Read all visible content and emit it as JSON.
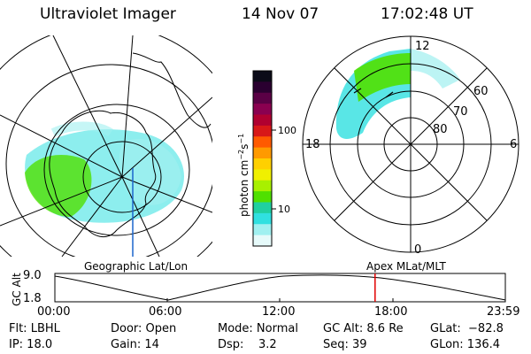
{
  "header": {
    "instrument": "Ultraviolet Imager",
    "date": "14 Nov 07",
    "time": "17:02:48 UT"
  },
  "colorbar": {
    "unit_label": "photon cm",
    "unit_sup1": "−2",
    "unit_mid": "s",
    "unit_sup2": "−1",
    "scale": "log",
    "ticks": [
      "100",
      "10"
    ],
    "colors": [
      "#0b0b18",
      "#2a0030",
      "#5a0045",
      "#8a0050",
      "#b00030",
      "#d81818",
      "#ff5a00",
      "#ff9a00",
      "#ffd000",
      "#f0f000",
      "#a8f000",
      "#50e000",
      "#20d0a0",
      "#30e0e0",
      "#a0f0f0",
      "#e6fafa"
    ]
  },
  "left_map": {
    "label": "Geographic Lat/Lon"
  },
  "right_map": {
    "label": "Apex MLat/MLT",
    "mlt_labels": {
      "top": "12",
      "left": "18",
      "right": "6",
      "bottom": "0"
    },
    "lat_labels": [
      "60",
      "70",
      "80"
    ]
  },
  "altitude_plot": {
    "ylabel": "GC Alt",
    "y_ticks": [
      "9.0",
      "1.8"
    ],
    "x_ticks": [
      "00:00",
      "06:00",
      "12:00",
      "18:00",
      "23:59"
    ],
    "marker_time": "17:02:48",
    "marker_color": "#e00000"
  },
  "status": {
    "filter": "Flt: LBHL",
    "ip": "IP: 18.0",
    "door": "Door: Open",
    "gain": "Gain: 14",
    "mode": "Mode: Normal",
    "dsp": "Dsp:    3.2",
    "gc_alt": "GC Alt: 8.6 Re",
    "seq": "Seq: 39",
    "glat": "GLat:  −82.8",
    "glon": "GLon: 136.4"
  }
}
